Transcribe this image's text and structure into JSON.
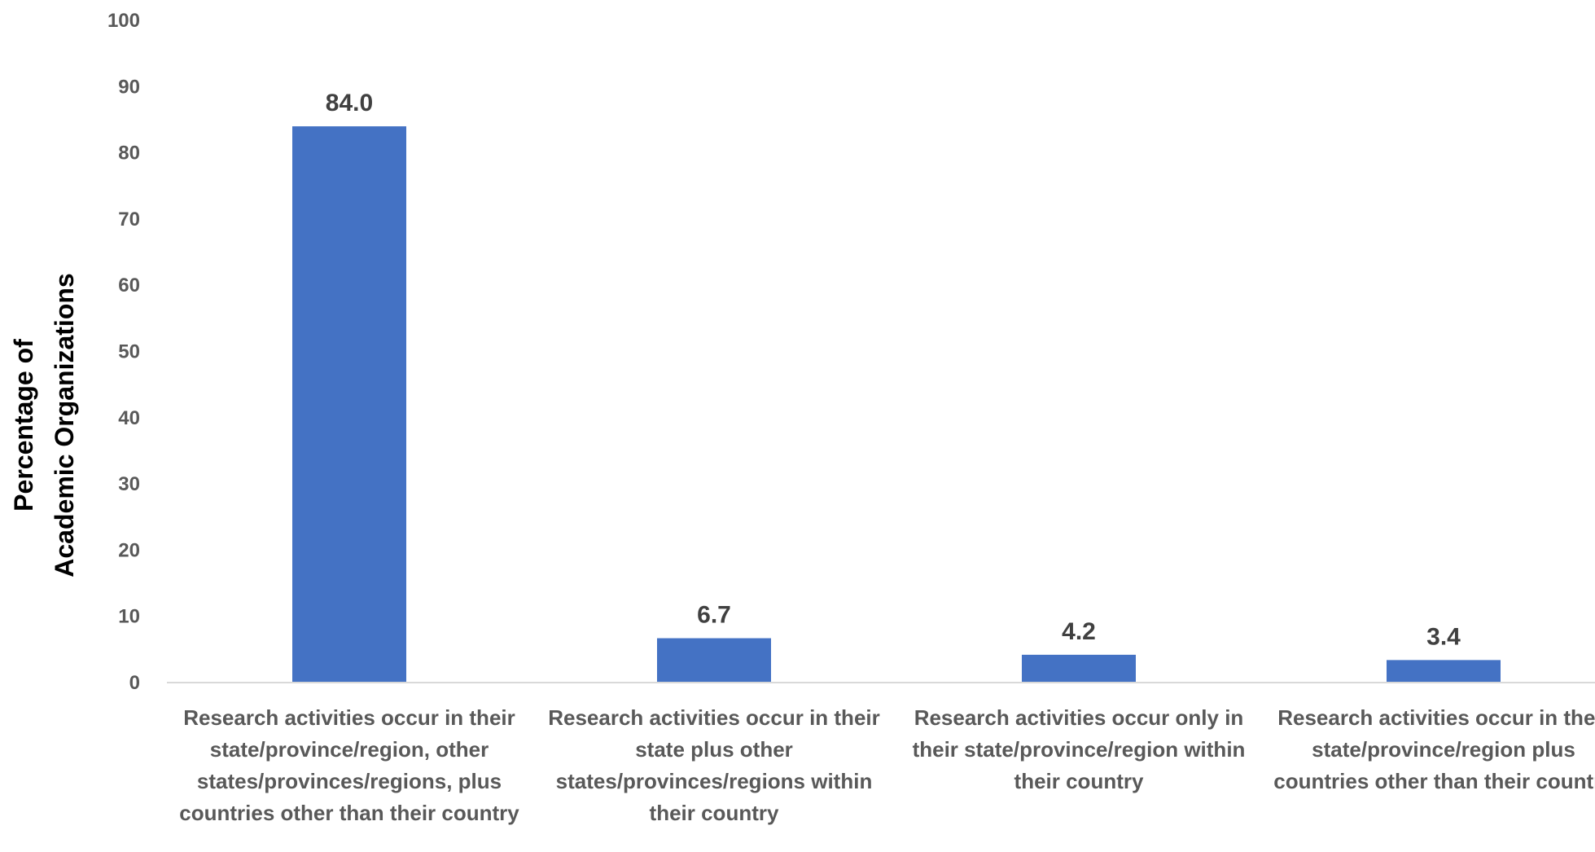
{
  "chart_data": {
    "type": "bar",
    "ylabel_lines": [
      "Percentage of",
      "Academic Organizations"
    ],
    "ylim": [
      0,
      100
    ],
    "yticks": [
      0,
      10,
      20,
      30,
      40,
      50,
      60,
      70,
      80,
      90,
      100
    ],
    "categories": [
      "Research activities occur in their state/province/region, other states/provinces/regions, plus countries other than their country",
      "Research activities occur in their state plus other states/provinces/regions within their country",
      "Research activities occur only in their state/province/region within their country",
      "Research activities occur in their state/province/region plus countries other than their country"
    ],
    "values": [
      84.0,
      6.7,
      4.2,
      3.4
    ],
    "data_labels": [
      "84.0",
      "6.7",
      "4.2",
      "3.4"
    ],
    "grid": false,
    "colors": {
      "bar": "#4472C4",
      "axis": "#D9D9D9"
    }
  }
}
